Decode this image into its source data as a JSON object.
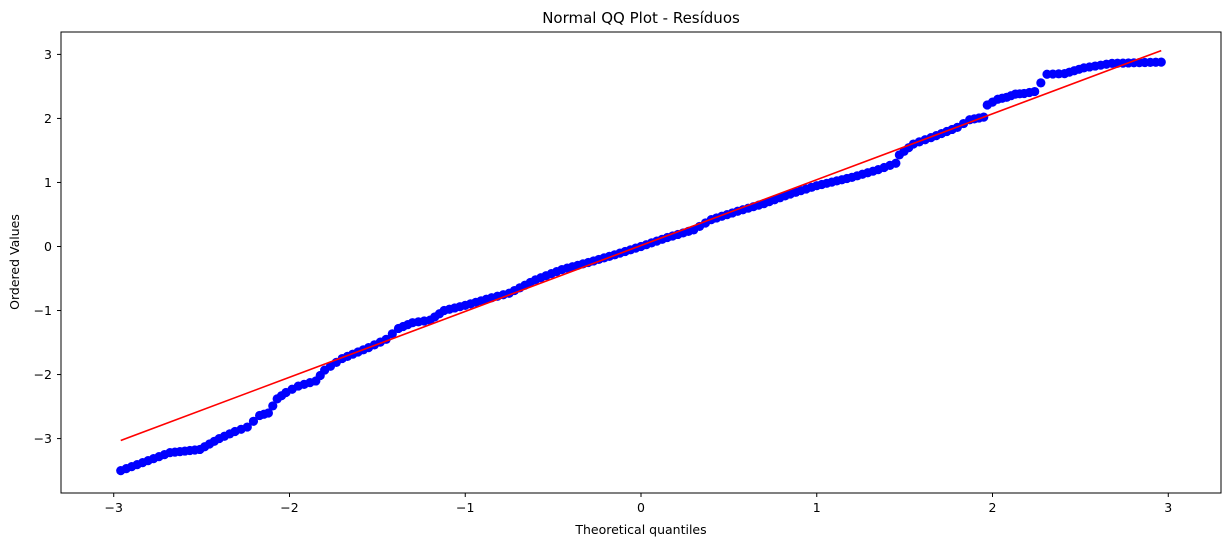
{
  "chart_data": {
    "type": "scatter",
    "title": "Normal QQ Plot - Resíduos",
    "xlabel": "Theoretical quantiles",
    "ylabel": "Ordered Values",
    "xlim": [
      -3.3,
      3.3
    ],
    "ylim": [
      -3.85,
      3.35
    ],
    "x_ticks": [
      {
        "value": -3,
        "label": "−3"
      },
      {
        "value": -2,
        "label": "−2"
      },
      {
        "value": -1,
        "label": "−1"
      },
      {
        "value": 0,
        "label": "0"
      },
      {
        "value": 1,
        "label": "1"
      },
      {
        "value": 2,
        "label": "2"
      },
      {
        "value": 3,
        "label": "3"
      }
    ],
    "y_ticks": [
      {
        "value": -3,
        "label": "−3"
      },
      {
        "value": -2,
        "label": "−2"
      },
      {
        "value": -1,
        "label": "−1"
      },
      {
        "value": 0,
        "label": "0"
      },
      {
        "value": 1,
        "label": "1"
      },
      {
        "value": 2,
        "label": "2"
      },
      {
        "value": 3,
        "label": "3"
      }
    ],
    "grid": false,
    "legend": "none",
    "colors": {
      "points": "#0000ff",
      "fit_line": "#ff0000"
    },
    "fit_line": {
      "x": [
        -2.96,
        2.96
      ],
      "y": [
        -3.03,
        3.06
      ]
    },
    "knots": [
      [
        -2.96,
        -3.5
      ],
      [
        -2.68,
        -3.22
      ],
      [
        -2.51,
        -3.17
      ],
      [
        -2.4,
        -3.0
      ],
      [
        -2.31,
        -2.89
      ],
      [
        -2.24,
        -2.82
      ],
      [
        -2.17,
        -2.64
      ],
      [
        -2.12,
        -2.6
      ],
      [
        -2.07,
        -2.38
      ],
      [
        -2.02,
        -2.28
      ],
      [
        -1.95,
        -2.18
      ],
      [
        -1.85,
        -2.1
      ],
      [
        -1.8,
        -1.93
      ],
      [
        -1.7,
        -1.75
      ],
      [
        -1.55,
        -1.58
      ],
      [
        -1.45,
        -1.45
      ],
      [
        -1.38,
        -1.28
      ],
      [
        -1.3,
        -1.19
      ],
      [
        -1.2,
        -1.15
      ],
      [
        -1.12,
        -1.0
      ],
      [
        -1.0,
        -0.92
      ],
      [
        -0.85,
        -0.8
      ],
      [
        -0.75,
        -0.73
      ],
      [
        -0.6,
        -0.52
      ],
      [
        -0.45,
        -0.36
      ],
      [
        -0.3,
        -0.25
      ],
      [
        -0.15,
        -0.13
      ],
      [
        0.0,
        0.0
      ],
      [
        0.15,
        0.14
      ],
      [
        0.3,
        0.26
      ],
      [
        0.4,
        0.42
      ],
      [
        0.55,
        0.55
      ],
      [
        0.7,
        0.67
      ],
      [
        0.85,
        0.82
      ],
      [
        1.0,
        0.95
      ],
      [
        1.2,
        1.08
      ],
      [
        1.35,
        1.2
      ],
      [
        1.45,
        1.3
      ],
      [
        1.47,
        1.43
      ],
      [
        1.55,
        1.6
      ],
      [
        1.65,
        1.7
      ],
      [
        1.8,
        1.86
      ],
      [
        1.87,
        1.98
      ],
      [
        1.95,
        2.02
      ],
      [
        1.97,
        2.21
      ],
      [
        2.03,
        2.3
      ],
      [
        2.08,
        2.33
      ],
      [
        2.13,
        2.38
      ],
      [
        2.18,
        2.39
      ],
      [
        2.24,
        2.42
      ],
      [
        2.31,
        2.69
      ],
      [
        2.41,
        2.7
      ],
      [
        2.52,
        2.79
      ],
      [
        2.68,
        2.86
      ],
      [
        2.96,
        2.88
      ]
    ]
  }
}
